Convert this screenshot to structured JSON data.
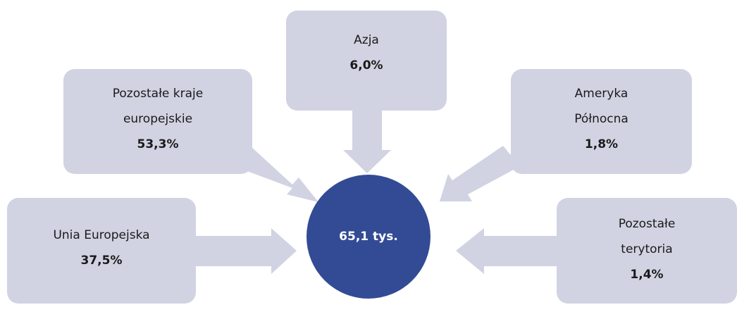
{
  "center": {
    "value": "65,1 tys."
  },
  "regions": [
    {
      "id": "asia",
      "label": "Azja",
      "percent": "6,0%"
    },
    {
      "id": "europe",
      "label": "Pozostałe kraje\neuropejskie",
      "percent": "53,3%"
    },
    {
      "id": "namerica",
      "label": "Ameryka\nPółnocna",
      "percent": "1,8%"
    },
    {
      "id": "eu",
      "label": "Unia Europejska",
      "percent": "37,5%"
    },
    {
      "id": "other",
      "label": "Pozostałe\nterytoria",
      "percent": "1,4%"
    }
  ],
  "colors": {
    "box": "#d1d3e3",
    "circle": "#334b94",
    "circle_text": "#ffffff"
  }
}
